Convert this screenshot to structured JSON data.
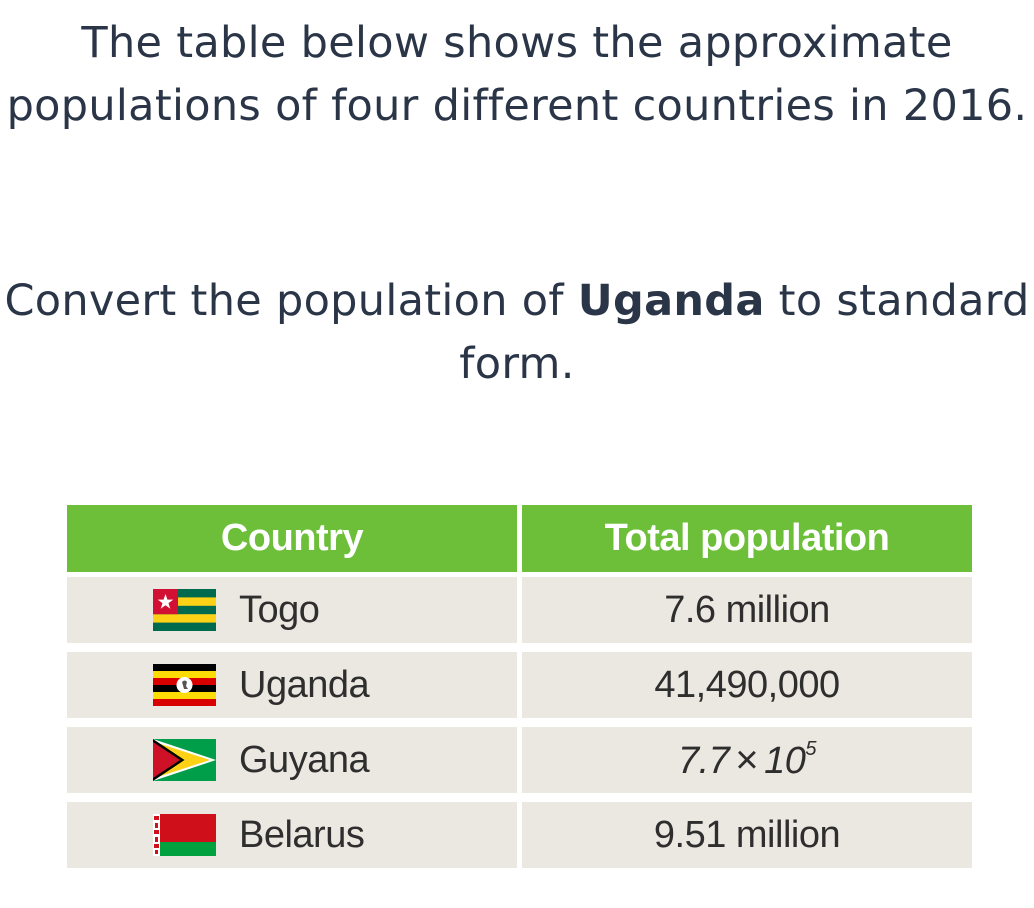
{
  "question": {
    "intro": "The table below shows the approximate populations of four different countries in 2016.",
    "prompt_before": "Convert the population of ",
    "prompt_country": "Uganda",
    "prompt_after": " to standard form."
  },
  "table": {
    "headers": [
      "Country",
      "Total population"
    ],
    "rows": [
      {
        "country": "Togo",
        "population": "7.6 million"
      },
      {
        "country": "Uganda",
        "population": "41,490,000"
      },
      {
        "country": "Guyana",
        "population_mantissa": "7.7",
        "population_times": "×",
        "population_base": "10",
        "population_exponent": "5"
      },
      {
        "country": "Belarus",
        "population": "9.51 million"
      }
    ]
  },
  "colors": {
    "header_bg": "#6dbf3a",
    "row_bg": "#ebe8e1",
    "text": "#2a3547"
  }
}
